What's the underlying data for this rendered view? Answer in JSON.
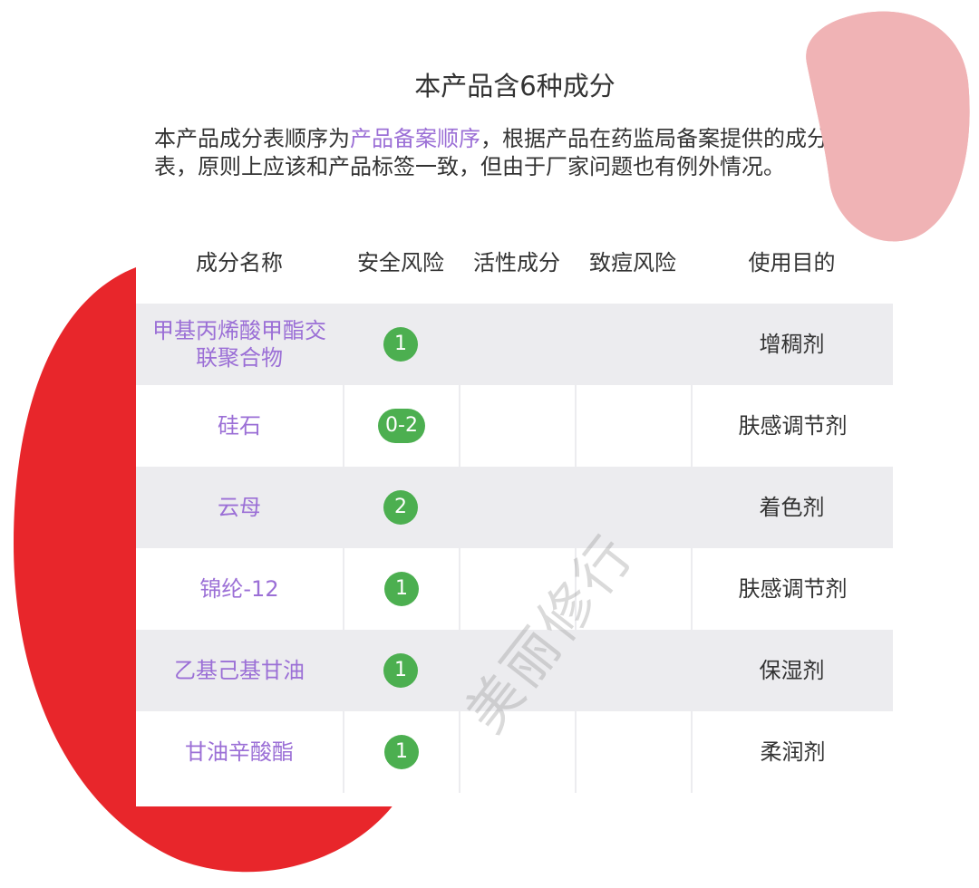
{
  "title": "本产品含6种成分",
  "intro": {
    "before": "本产品成分表顺序为",
    "highlight": "产品备案顺序",
    "after": "，根据产品在药监局备案提供的成分表，原则上应该和产品标签一致，但由于厂家问题也有例外情况。"
  },
  "table": {
    "headers": [
      "成分名称",
      "安全风险",
      "活性成分",
      "致痘风险",
      "使用目的"
    ],
    "rows": [
      {
        "name": "甲基丙烯酸甲酯交联聚合物",
        "safety": "1",
        "active": "",
        "acne": "",
        "purpose": "增稠剂"
      },
      {
        "name": "硅石",
        "safety": "0-2",
        "active": "",
        "acne": "",
        "purpose": "肤感调节剂"
      },
      {
        "name": "云母",
        "safety": "2",
        "active": "",
        "acne": "",
        "purpose": "着色剂"
      },
      {
        "name": "锦纶-12",
        "safety": "1",
        "active": "",
        "acne": "",
        "purpose": "肤感调节剂"
      },
      {
        "name": "乙基己基甘油",
        "safety": "1",
        "active": "",
        "acne": "",
        "purpose": "保湿剂"
      },
      {
        "name": "甘油辛酸酯",
        "safety": "1",
        "active": "",
        "acne": "",
        "purpose": "柔润剂"
      }
    ]
  },
  "watermark": "美丽修行",
  "colors": {
    "accent": "#9b6fd6",
    "badge": "#4caf50",
    "red_blob": "#e8262b",
    "pink_blob": "#f0b3b5",
    "row_gray": "#ececef"
  }
}
